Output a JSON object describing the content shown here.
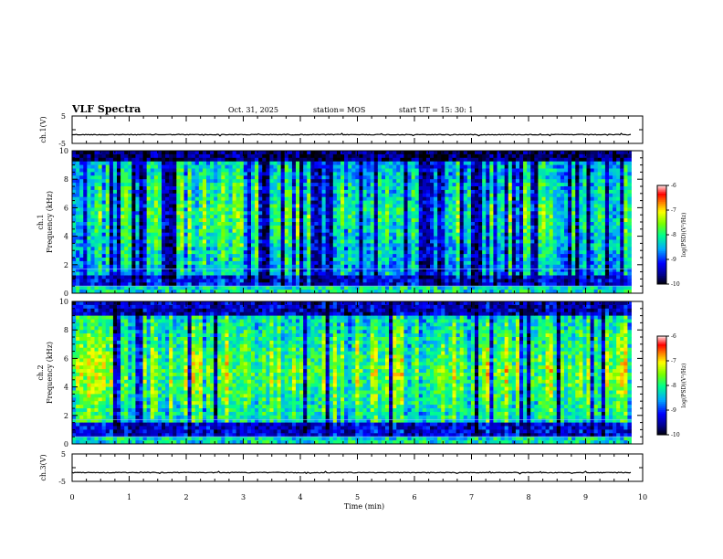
{
  "header": {
    "title": "VLF Spectra",
    "date": "Oct. 31, 2025",
    "station": "station= MOS",
    "start": "start UT =  15: 30: 1"
  },
  "chart_data": [
    {
      "type": "line",
      "name": "ch1-waveform",
      "ylabel": "ch.1(V)",
      "ylim": [
        -5,
        5
      ],
      "yticks": [
        "5",
        "-5"
      ],
      "xlim": [
        0,
        10
      ],
      "trace_level": -1.8
    },
    {
      "type": "heatmap",
      "name": "ch1-spectrogram",
      "ylabel": "ch.1\nFrequency (kHz)",
      "ylim": [
        0,
        10
      ],
      "yticks": [
        "0",
        "2",
        "4",
        "6",
        "8",
        "10"
      ],
      "xlim": [
        0,
        10
      ],
      "data_end_min": 9.8,
      "colorbar": {
        "label": "log(PSD)(V²/Hz)",
        "range": [
          -10,
          -6
        ],
        "ticks": [
          "-6",
          "-7",
          "-8",
          "-9",
          "-10"
        ]
      }
    },
    {
      "type": "heatmap",
      "name": "ch2-spectrogram",
      "ylabel": "ch.2\nFrequency (kHz)",
      "ylim": [
        0,
        10
      ],
      "yticks": [
        "0",
        "2",
        "4",
        "6",
        "8",
        "10"
      ],
      "xlim": [
        0,
        10
      ],
      "data_end_min": 9.8,
      "colorbar": {
        "label": "log(PSD)(V²/Hz)",
        "range": [
          -10,
          -6
        ],
        "ticks": [
          "-6",
          "-7",
          "-8",
          "-9",
          "-10"
        ]
      }
    },
    {
      "type": "line",
      "name": "ch3-waveform",
      "ylabel": "ch.3(V)",
      "ylim": [
        -5,
        5
      ],
      "yticks": [
        "5",
        "-5"
      ],
      "xlim": [
        0,
        10
      ],
      "xlabel": "Time (min)",
      "xticks": [
        "0",
        "1",
        "2",
        "3",
        "4",
        "5",
        "6",
        "7",
        "8",
        "9",
        "10"
      ],
      "trace_level": -1.8
    }
  ],
  "colors": {
    "scale": [
      "#000000",
      "#0000ff",
      "#00a0ff",
      "#00ff80",
      "#80ff00",
      "#ffff00",
      "#ff8000",
      "#ff0000",
      "#ffc0c0",
      "#ffffff"
    ]
  }
}
